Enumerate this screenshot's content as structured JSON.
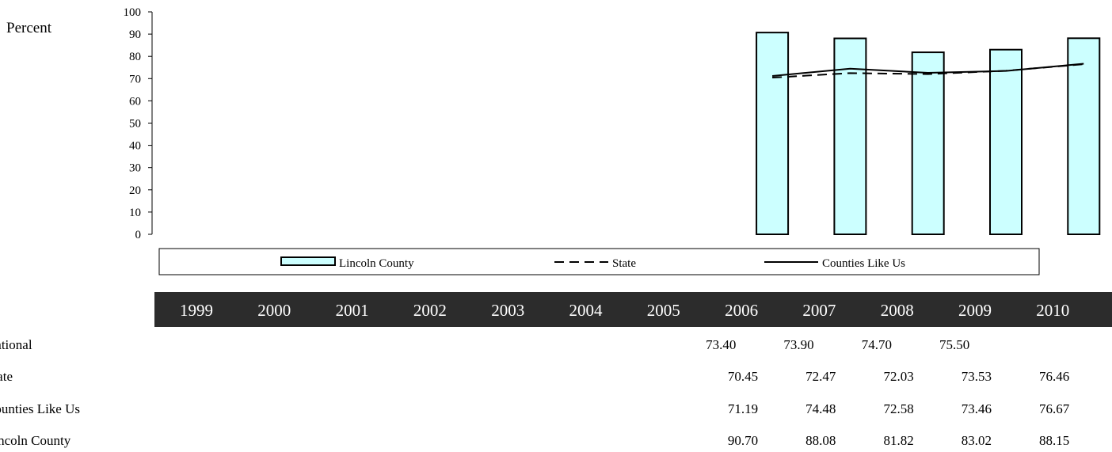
{
  "chart_data": {
    "type": "bar",
    "ylabel": "Percent",
    "ylim": [
      0,
      100
    ],
    "yticks": [
      "0",
      "10",
      "20",
      "30",
      "40",
      "50",
      "60",
      "70",
      "80",
      "90",
      "100"
    ],
    "categories": [
      "1999",
      "2000",
      "2001",
      "2002",
      "2003",
      "2004",
      "2005",
      "2006",
      "2007",
      "2008",
      "2009",
      "2010"
    ],
    "series": [
      {
        "name": "Lincoln County",
        "kind": "bar",
        "color": "#ccffff",
        "values": [
          null,
          null,
          null,
          null,
          null,
          null,
          null,
          90.7,
          88.08,
          81.82,
          83.02,
          88.15
        ]
      },
      {
        "name": "State",
        "kind": "line",
        "dash": "dashed",
        "color": "#000000",
        "values": [
          null,
          null,
          null,
          null,
          null,
          null,
          null,
          70.45,
          72.47,
          72.03,
          73.53,
          76.46
        ]
      },
      {
        "name": "Counties Like Us",
        "kind": "line",
        "dash": "solid",
        "color": "#000000",
        "values": [
          null,
          null,
          null,
          null,
          null,
          null,
          null,
          71.19,
          74.48,
          72.58,
          73.46,
          76.67
        ]
      }
    ],
    "legend_position": "bottom",
    "grid": false
  },
  "table": {
    "rows": [
      {
        "label": "National",
        "align": "left",
        "values": [
          "",
          "",
          "",
          "",
          "",
          "",
          "",
          "73.40",
          "73.90",
          "74.70",
          "75.50",
          ""
        ]
      },
      {
        "label": "State",
        "align": "right",
        "values": [
          "",
          "",
          "",
          "",
          "",
          "",
          "",
          "70.45",
          "72.47",
          "72.03",
          "73.53",
          "76.46"
        ]
      },
      {
        "label": "Counties Like Us",
        "align": "right",
        "values": [
          "",
          "",
          "",
          "",
          "",
          "",
          "",
          "71.19",
          "74.48",
          "72.58",
          "73.46",
          "76.67"
        ]
      },
      {
        "label": "Lincoln County",
        "align": "right",
        "values": [
          "",
          "",
          "",
          "",
          "",
          "",
          "",
          "90.70",
          "88.08",
          "81.82",
          "83.02",
          "88.15"
        ]
      }
    ]
  }
}
